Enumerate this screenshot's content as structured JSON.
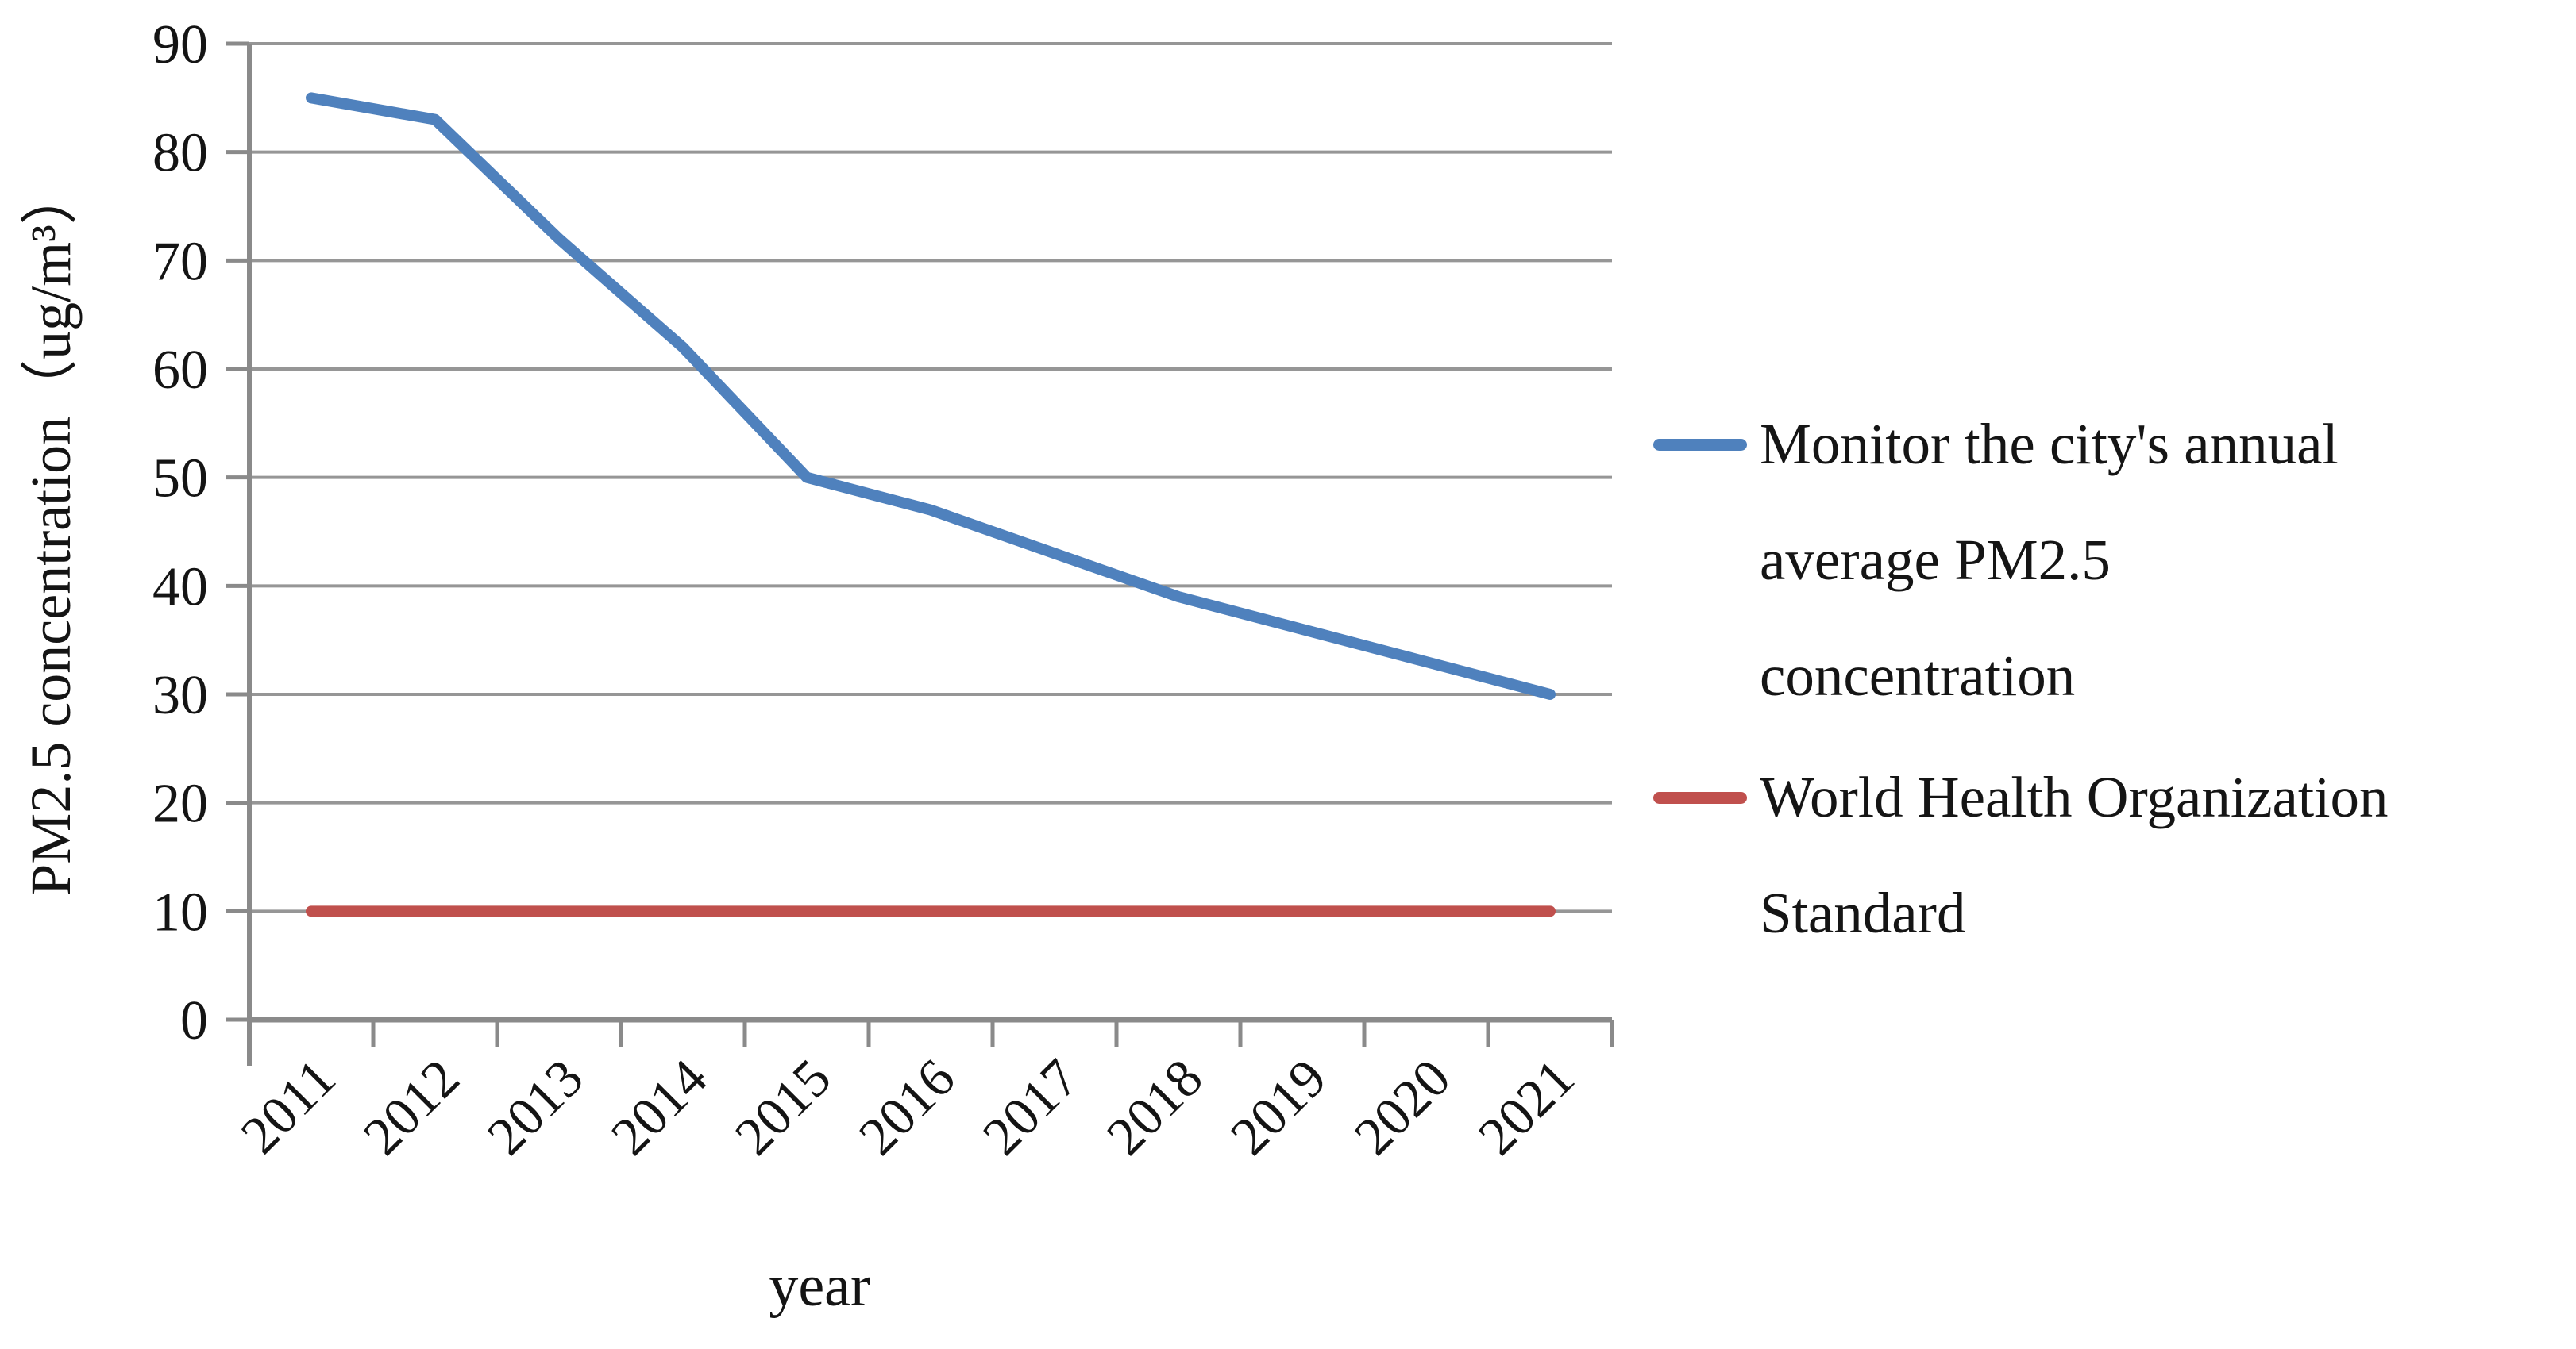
{
  "chart_data": {
    "type": "line",
    "title": "",
    "xlabel": "year",
    "ylabel": "PM2.5 concentration（ug/m³）",
    "categories": [
      "2011",
      "2012",
      "2013",
      "2014",
      "2015",
      "2016",
      "2017",
      "2018",
      "2019",
      "2020",
      "2021"
    ],
    "series": [
      {
        "name": "Monitor the city's annual average PM2.5 concentration",
        "legend_lines": [
          "Monitor the city's annual",
          "average PM2.5",
          "concentration"
        ],
        "color": "#4F81BD",
        "values": [
          85,
          83,
          72,
          62,
          50,
          47,
          43,
          39,
          36,
          33,
          30
        ]
      },
      {
        "name": "World Health Organization Standard",
        "legend_lines": [
          "World Health Organization",
          "Standard"
        ],
        "color": "#C0504D",
        "values": [
          10,
          10,
          10,
          10,
          10,
          10,
          10,
          10,
          10,
          10,
          10
        ]
      }
    ],
    "ylim": [
      0,
      90
    ],
    "ytick_step": 10,
    "y_tick_labels": [
      "0",
      "10",
      "20",
      "30",
      "40",
      "50",
      "60",
      "70",
      "80",
      "90"
    ],
    "grid": "horizontal",
    "legend_position": "right",
    "colors": {
      "grid": "#969696",
      "axis": "#8a8a8a",
      "text": "#141414",
      "background": "#ffffff"
    }
  }
}
